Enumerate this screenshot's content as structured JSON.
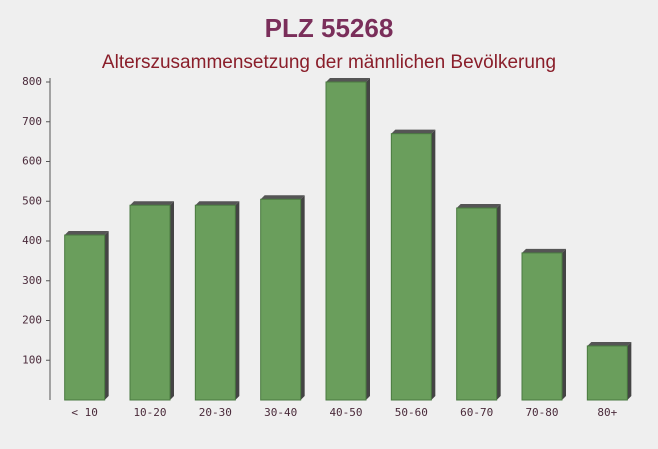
{
  "chart_data": {
    "type": "bar",
    "title": "PLZ 55268",
    "subtitle": "Alterszusammensetzung der männlichen Bevölkerung",
    "categories": [
      "< 10",
      "10-20",
      "20-30",
      "30-40",
      "40-50",
      "50-60",
      "60-70",
      "70-80",
      "80+"
    ],
    "values": [
      415,
      490,
      490,
      505,
      800,
      670,
      483,
      370,
      136
    ],
    "color": "#6a9e5c",
    "ylim": [
      0,
      800
    ],
    "yticks": [
      100,
      200,
      300,
      400,
      500,
      600,
      700,
      800
    ]
  }
}
